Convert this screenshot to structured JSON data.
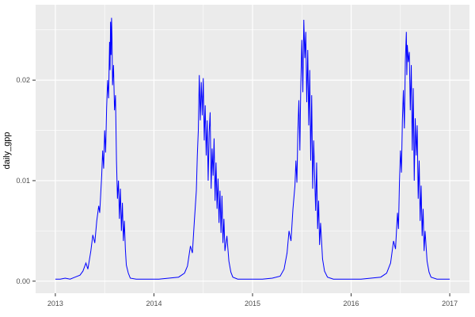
{
  "chart_data": {
    "type": "line",
    "title": "",
    "xlabel": "",
    "ylabel": "daily_gpp",
    "legend": null,
    "grid": true,
    "panel_bg": "#EBEBEB",
    "grid_color": "#FFFFFF",
    "line_color": "#0000FF",
    "tick_label_color": "#4D4D4D",
    "tick_mark_color": "#333333",
    "x_domain": [
      2012.8,
      2017.2
    ],
    "y_domain": [
      -0.0012,
      0.0275
    ],
    "x_ticks": [
      2013,
      2014,
      2015,
      2016,
      2017
    ],
    "x_tick_labels": [
      "2013",
      "2014",
      "2015",
      "2016",
      "2017"
    ],
    "y_ticks": [
      0.0,
      0.01,
      0.02
    ],
    "y_tick_labels": [
      "0.00",
      "0.01",
      "0.02"
    ],
    "x_minor": [
      2013.5,
      2014.5,
      2015.5,
      2016.5
    ],
    "y_minor": [
      0.005,
      0.015,
      0.025
    ],
    "series": [
      {
        "name": "daily_gpp",
        "points": [
          [
            2013.0,
            0.0002
          ],
          [
            2013.05,
            0.0002
          ],
          [
            2013.1,
            0.0003
          ],
          [
            2013.15,
            0.0002
          ],
          [
            2013.2,
            0.0004
          ],
          [
            2013.25,
            0.0006
          ],
          [
            2013.28,
            0.001
          ],
          [
            2013.31,
            0.0018
          ],
          [
            2013.33,
            0.0012
          ],
          [
            2013.36,
            0.003
          ],
          [
            2013.38,
            0.0046
          ],
          [
            2013.4,
            0.0038
          ],
          [
            2013.42,
            0.006
          ],
          [
            2013.44,
            0.0075
          ],
          [
            2013.45,
            0.0068
          ],
          [
            2013.47,
            0.0105
          ],
          [
            2013.48,
            0.013
          ],
          [
            2013.49,
            0.0112
          ],
          [
            2013.5,
            0.015
          ],
          [
            2013.51,
            0.0128
          ],
          [
            2013.52,
            0.0172
          ],
          [
            2013.53,
            0.02
          ],
          [
            2013.54,
            0.0182
          ],
          [
            2013.55,
            0.0238
          ],
          [
            2013.555,
            0.021
          ],
          [
            2013.56,
            0.0258
          ],
          [
            2013.565,
            0.0225
          ],
          [
            2013.57,
            0.0262
          ],
          [
            2013.575,
            0.024
          ],
          [
            2013.58,
            0.0195
          ],
          [
            2013.59,
            0.0215
          ],
          [
            2013.6,
            0.017
          ],
          [
            2013.61,
            0.0185
          ],
          [
            2013.62,
            0.012
          ],
          [
            2013.63,
            0.0082
          ],
          [
            2013.64,
            0.01
          ],
          [
            2013.65,
            0.0062
          ],
          [
            2013.66,
            0.0092
          ],
          [
            2013.67,
            0.005
          ],
          [
            2013.68,
            0.0078
          ],
          [
            2013.69,
            0.004
          ],
          [
            2013.7,
            0.006
          ],
          [
            2013.71,
            0.0032
          ],
          [
            2013.72,
            0.0016
          ],
          [
            2013.74,
            0.0008
          ],
          [
            2013.76,
            0.0003
          ],
          [
            2013.82,
            0.0002
          ],
          [
            2013.9,
            0.0002
          ],
          [
            2013.97,
            0.0002
          ],
          [
            2014.05,
            0.0002
          ],
          [
            2014.15,
            0.0003
          ],
          [
            2014.25,
            0.0004
          ],
          [
            2014.31,
            0.0008
          ],
          [
            2014.34,
            0.0015
          ],
          [
            2014.37,
            0.0035
          ],
          [
            2014.39,
            0.0028
          ],
          [
            2014.41,
            0.006
          ],
          [
            2014.43,
            0.009
          ],
          [
            2014.44,
            0.0125
          ],
          [
            2014.45,
            0.015
          ],
          [
            2014.46,
            0.0205
          ],
          [
            2014.47,
            0.016
          ],
          [
            2014.48,
            0.0198
          ],
          [
            2014.49,
            0.0165
          ],
          [
            2014.5,
            0.0202
          ],
          [
            2014.51,
            0.014
          ],
          [
            2014.52,
            0.0175
          ],
          [
            2014.53,
            0.0125
          ],
          [
            2014.54,
            0.016
          ],
          [
            2014.55,
            0.01
          ],
          [
            2014.56,
            0.0148
          ],
          [
            2014.57,
            0.0168
          ],
          [
            2014.58,
            0.0092
          ],
          [
            2014.59,
            0.0132
          ],
          [
            2014.6,
            0.0105
          ],
          [
            2014.61,
            0.0142
          ],
          [
            2014.62,
            0.008
          ],
          [
            2014.63,
            0.0118
          ],
          [
            2014.64,
            0.0072
          ],
          [
            2014.65,
            0.0102
          ],
          [
            2014.66,
            0.0058
          ],
          [
            2014.67,
            0.009
          ],
          [
            2014.68,
            0.0048
          ],
          [
            2014.69,
            0.0085
          ],
          [
            2014.7,
            0.0038
          ],
          [
            2014.71,
            0.0062
          ],
          [
            2014.72,
            0.003
          ],
          [
            2014.74,
            0.0045
          ],
          [
            2014.76,
            0.002
          ],
          [
            2014.78,
            0.0009
          ],
          [
            2014.8,
            0.0004
          ],
          [
            2014.85,
            0.0002
          ],
          [
            2014.92,
            0.0002
          ],
          [
            2015.0,
            0.0002
          ],
          [
            2015.1,
            0.0002
          ],
          [
            2015.2,
            0.0003
          ],
          [
            2015.28,
            0.0005
          ],
          [
            2015.32,
            0.0012
          ],
          [
            2015.35,
            0.0028
          ],
          [
            2015.37,
            0.005
          ],
          [
            2015.39,
            0.004
          ],
          [
            2015.41,
            0.0072
          ],
          [
            2015.43,
            0.0095
          ],
          [
            2015.44,
            0.012
          ],
          [
            2015.45,
            0.0098
          ],
          [
            2015.46,
            0.015
          ],
          [
            2015.47,
            0.018
          ],
          [
            2015.48,
            0.013
          ],
          [
            2015.49,
            0.0198
          ],
          [
            2015.5,
            0.024
          ],
          [
            2015.51,
            0.0188
          ],
          [
            2015.52,
            0.026
          ],
          [
            2015.53,
            0.0222
          ],
          [
            2015.54,
            0.0248
          ],
          [
            2015.55,
            0.0178
          ],
          [
            2015.56,
            0.023
          ],
          [
            2015.57,
            0.0155
          ],
          [
            2015.58,
            0.021
          ],
          [
            2015.59,
            0.012
          ],
          [
            2015.6,
            0.0185
          ],
          [
            2015.61,
            0.0092
          ],
          [
            2015.62,
            0.014
          ],
          [
            2015.63,
            0.0105
          ],
          [
            2015.64,
            0.007
          ],
          [
            2015.65,
            0.0118
          ],
          [
            2015.66,
            0.0052
          ],
          [
            2015.67,
            0.008
          ],
          [
            2015.68,
            0.0036
          ],
          [
            2015.69,
            0.0058
          ],
          [
            2015.71,
            0.0022
          ],
          [
            2015.73,
            0.001
          ],
          [
            2015.76,
            0.0004
          ],
          [
            2015.82,
            0.0002
          ],
          [
            2015.9,
            0.0002
          ],
          [
            2016.0,
            0.0002
          ],
          [
            2016.1,
            0.0002
          ],
          [
            2016.2,
            0.0003
          ],
          [
            2016.3,
            0.0004
          ],
          [
            2016.36,
            0.0008
          ],
          [
            2016.4,
            0.0018
          ],
          [
            2016.43,
            0.004
          ],
          [
            2016.45,
            0.0032
          ],
          [
            2016.47,
            0.0068
          ],
          [
            2016.48,
            0.0052
          ],
          [
            2016.49,
            0.0098
          ],
          [
            2016.5,
            0.013
          ],
          [
            2016.51,
            0.0108
          ],
          [
            2016.52,
            0.016
          ],
          [
            2016.53,
            0.019
          ],
          [
            2016.54,
            0.0152
          ],
          [
            2016.55,
            0.022
          ],
          [
            2016.56,
            0.0248
          ],
          [
            2016.565,
            0.0205
          ],
          [
            2016.57,
            0.0235
          ],
          [
            2016.58,
            0.0218
          ],
          [
            2016.59,
            0.0228
          ],
          [
            2016.6,
            0.017
          ],
          [
            2016.61,
            0.0215
          ],
          [
            2016.62,
            0.013
          ],
          [
            2016.63,
            0.0192
          ],
          [
            2016.64,
            0.01
          ],
          [
            2016.65,
            0.0162
          ],
          [
            2016.66,
            0.0125
          ],
          [
            2016.67,
            0.0155
          ],
          [
            2016.68,
            0.0082
          ],
          [
            2016.69,
            0.012
          ],
          [
            2016.7,
            0.006
          ],
          [
            2016.71,
            0.0095
          ],
          [
            2016.72,
            0.0045
          ],
          [
            2016.73,
            0.0072
          ],
          [
            2016.74,
            0.003
          ],
          [
            2016.75,
            0.005
          ],
          [
            2016.77,
            0.002
          ],
          [
            2016.79,
            0.0009
          ],
          [
            2016.81,
            0.0004
          ],
          [
            2016.87,
            0.0002
          ],
          [
            2016.94,
            0.0002
          ],
          [
            2017.0,
            0.0002
          ]
        ]
      }
    ]
  }
}
